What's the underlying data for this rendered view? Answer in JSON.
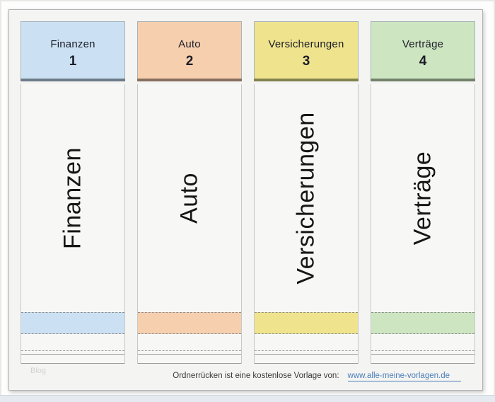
{
  "folders": [
    {
      "label": "Finanzen",
      "number": "1",
      "color": "#cbe1f3",
      "bar_color": "#6d7b89"
    },
    {
      "label": "Auto",
      "number": "2",
      "color": "#f6cfae",
      "bar_color": "#877060"
    },
    {
      "label": "Versicherungen",
      "number": "3",
      "color": "#efe48d",
      "bar_color": "#82824f"
    },
    {
      "label": "Verträge",
      "number": "4",
      "color": "#cde5c0",
      "bar_color": "#72826b"
    }
  ],
  "footer": {
    "caption": "Ordnerrücken ist eine kostenlose Vorlage von:",
    "link": "www.alle-meine-vorlagen.de",
    "link_color": "#4a7ebb"
  },
  "watermark": "Blog"
}
